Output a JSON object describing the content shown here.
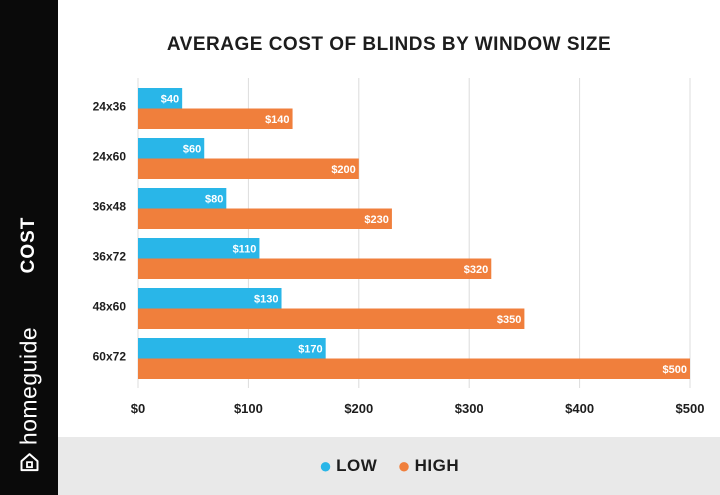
{
  "sidebar": {
    "label": "COST",
    "brand": "homeguide"
  },
  "chart_data": {
    "type": "bar",
    "orientation": "horizontal",
    "title": "AVERAGE COST OF BLINDS BY WINDOW SIZE",
    "xlabel": "",
    "ylabel": "COST",
    "categories": [
      "24x36",
      "24x60",
      "36x48",
      "36x72",
      "48x60",
      "60x72"
    ],
    "series": [
      {
        "name": "LOW",
        "values": [
          40,
          60,
          80,
          110,
          130,
          170
        ],
        "labels": [
          "$40",
          "$60",
          "$80",
          "$110",
          "$130",
          "$170"
        ],
        "color": "#29b6e8"
      },
      {
        "name": "HIGH",
        "values": [
          140,
          200,
          230,
          320,
          350,
          500
        ],
        "labels": [
          "$140",
          "$200",
          "$230",
          "$320",
          "$350",
          "$500"
        ],
        "color": "#f07f3c"
      }
    ],
    "xlim": [
      0,
      500
    ],
    "xticks": [
      0,
      100,
      200,
      300,
      400,
      500
    ],
    "xtick_labels": [
      "$0",
      "$100",
      "$200",
      "$300",
      "$400",
      "$500"
    ],
    "grid": "vertical",
    "legend_position": "bottom-center"
  },
  "legend": {
    "items": [
      {
        "label": "LOW",
        "color": "#29b6e8",
        "dot": "●"
      },
      {
        "label": "HIGH",
        "color": "#f07f3c",
        "dot": "●"
      }
    ]
  }
}
